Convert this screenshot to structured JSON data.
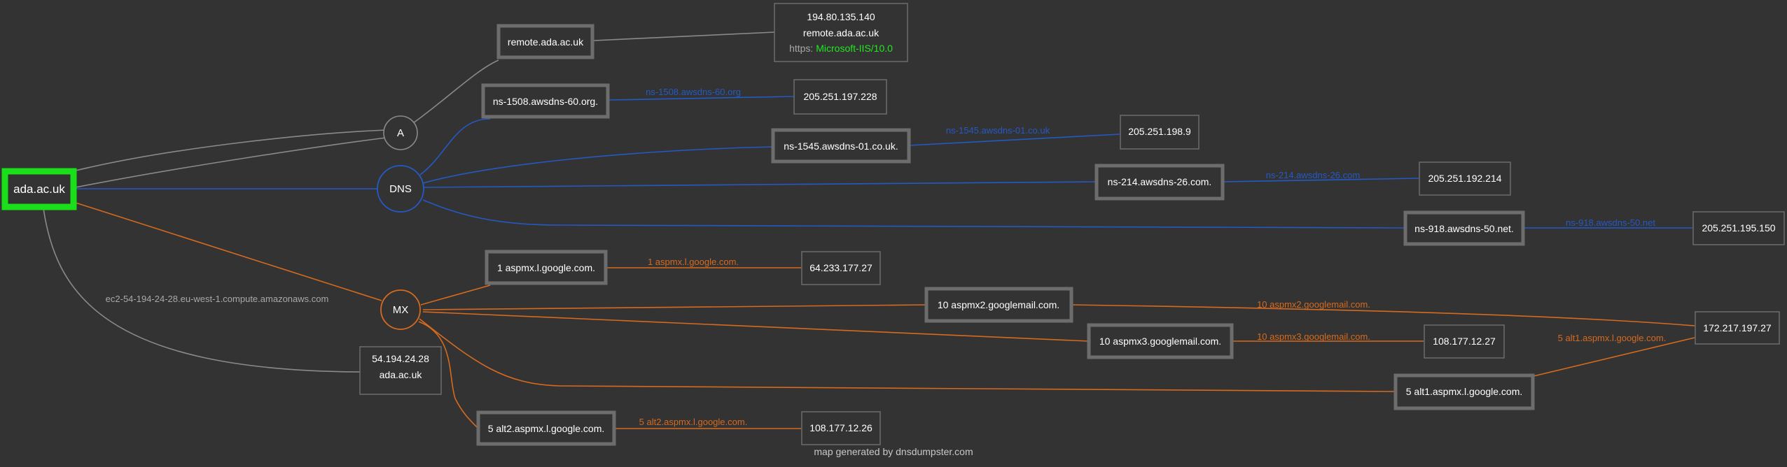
{
  "colors": {
    "background": "#333333",
    "node_border": "#6d6d6d",
    "root_border": "#1adf1a",
    "a_edge": "#8a8a8a",
    "dns_edge": "#2559c4",
    "mx_edge": "#d66a1f",
    "text": "#ffffff",
    "muted_text": "#a8a8a8",
    "server_green": "#23e623"
  },
  "root": {
    "label": "ada.ac.uk"
  },
  "hubs": {
    "a": "A",
    "dns": "DNS",
    "mx": "MX"
  },
  "a_record": {
    "host": "remote.ada.ac.uk",
    "info": {
      "ip": "194.80.135.140",
      "host": "remote.ada.ac.uk",
      "proto": "https:",
      "server": "Microsoft-IIS/10.0"
    }
  },
  "reverse": {
    "edge_label": "ec2-54-194-24-28.eu-west-1.compute.amazonaws.com",
    "ip": "54.194.24.28",
    "host": "ada.ac.uk"
  },
  "ns": [
    {
      "name": "ns-1508.awsdns-60.org.",
      "edge_label": "ns-1508.awsdns-60.org",
      "ip": "205.251.197.228"
    },
    {
      "name": "ns-1545.awsdns-01.co.uk.",
      "edge_label": "ns-1545.awsdns-01.co.uk",
      "ip": "205.251.198.9"
    },
    {
      "name": "ns-214.awsdns-26.com.",
      "edge_label": "ns-214.awsdns-26.com",
      "ip": "205.251.192.214"
    },
    {
      "name": "ns-918.awsdns-50.net.",
      "edge_label": "ns-918.awsdns-50.net",
      "ip": "205.251.195.150"
    }
  ],
  "mx": [
    {
      "name": "1 aspmx.l.google.com.",
      "edge_label": "1 aspmx.l.google.com.",
      "ip": "64.233.177.27"
    },
    {
      "name": "10 aspmx2.googlemail.com.",
      "edge_label": "10 aspmx2.googlemail.com.",
      "ip": "172.217.197.27"
    },
    {
      "name": "10 aspmx3.googlemail.com.",
      "edge_label": "10 aspmx3.googlemail.com.",
      "ip": "108.177.12.27"
    },
    {
      "name": "5 alt1.aspmx.l.google.com.",
      "edge_label": "5 alt1.aspmx.l.google.com.",
      "ip": "172.217.197.27"
    },
    {
      "name": "5 alt2.aspmx.l.google.com.",
      "edge_label": "5 alt2.aspmx.l.google.com.",
      "ip": "108.177.12.26"
    }
  ],
  "footer": "map generated by dnsdumpster.com"
}
